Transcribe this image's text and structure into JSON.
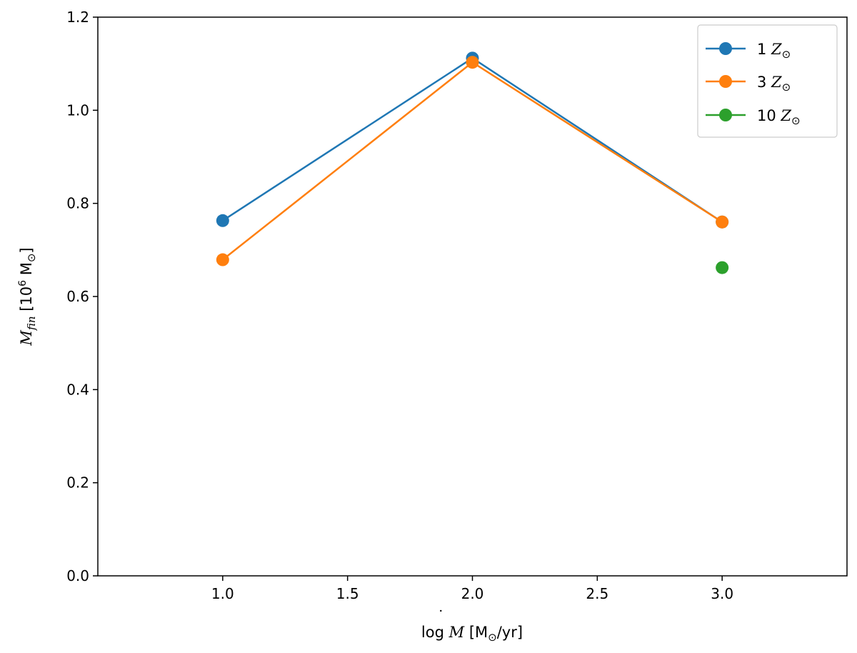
{
  "chart_data": {
    "type": "line",
    "title": "",
    "xlabel": {
      "prefix": "log ",
      "symbol": "M",
      "dot": "˙",
      "unit_open": " [M",
      "sun": "⊙",
      "unit_close": "/yr]"
    },
    "ylabel": {
      "symbol": "M",
      "subscript": "fin",
      "unit_open": " [10",
      "exponent": "6",
      "unit_mid": " M",
      "sun": "⊙",
      "unit_close": "]"
    },
    "xlim": [
      0.5,
      3.5
    ],
    "ylim": [
      0.0,
      1.2
    ],
    "xticks": [
      1.0,
      1.5,
      2.0,
      2.5,
      3.0
    ],
    "xtick_labels": [
      "1.0",
      "1.5",
      "2.0",
      "2.5",
      "3.0"
    ],
    "yticks": [
      0.0,
      0.2,
      0.4,
      0.6,
      0.8,
      1.0,
      1.2
    ],
    "ytick_labels": [
      "0.0",
      "0.2",
      "0.4",
      "0.6",
      "0.8",
      "1.0",
      "1.2"
    ],
    "grid": false,
    "legend_position": "top-right",
    "series": [
      {
        "name": "1 Z⊙",
        "legend_number": "1 ",
        "legend_symbol": "Z",
        "legend_sun": "⊙",
        "color": "#1f77b4",
        "x": [
          1.0,
          2.0,
          3.0
        ],
        "y": [
          0.763,
          1.112,
          0.76
        ]
      },
      {
        "name": "3 Z⊙",
        "legend_number": "3 ",
        "legend_symbol": "Z",
        "legend_sun": "⊙",
        "color": "#ff7f0e",
        "x": [
          1.0,
          2.0,
          3.0
        ],
        "y": [
          0.679,
          1.103,
          0.76
        ]
      },
      {
        "name": "10 Z⊙",
        "legend_number": "10 ",
        "legend_symbol": "Z",
        "legend_sun": "⊙",
        "color": "#2ca02c",
        "x": [
          3.0
        ],
        "y": [
          0.662
        ]
      }
    ]
  }
}
